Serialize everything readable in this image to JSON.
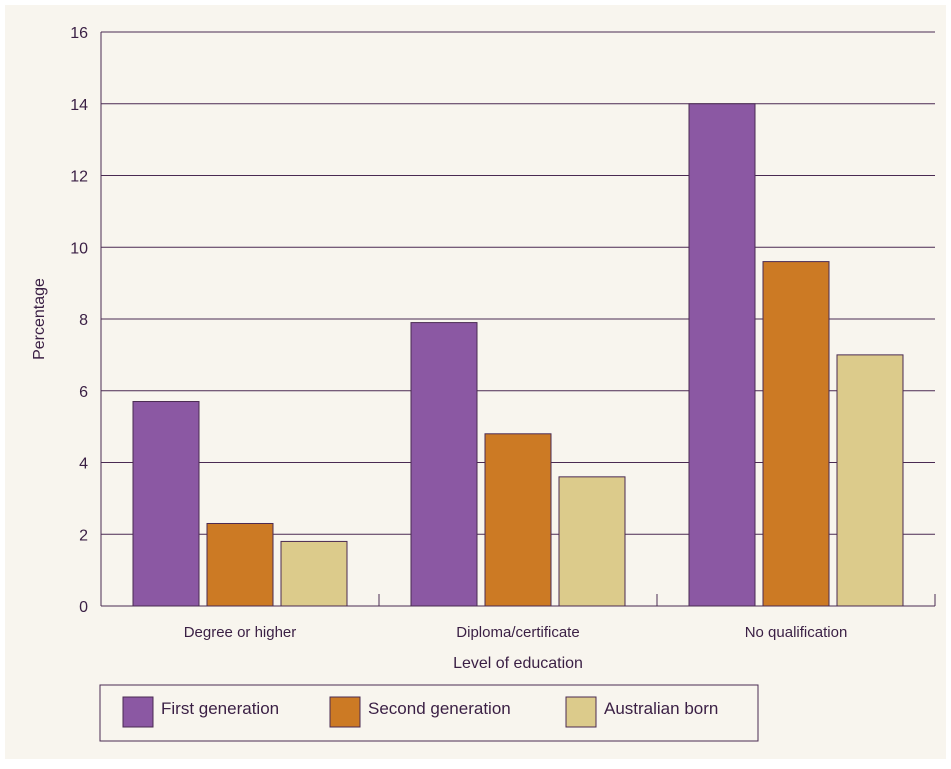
{
  "colors": {
    "background": "#f8f5ee",
    "axis": "#4a2a52",
    "grid": "#4a2a52",
    "text": "#3a1f44",
    "first_generation": "#8b58a3",
    "second_generation": "#cc7a24",
    "australian_born": "#dccb8b"
  },
  "chart_data": {
    "type": "bar",
    "title": "",
    "xlabel": "Level of education",
    "ylabel": "Percentage",
    "ylim": [
      0,
      16
    ],
    "yticks": [
      0,
      2,
      4,
      6,
      8,
      10,
      12,
      14,
      16
    ],
    "grid": true,
    "legend_position": "bottom-left",
    "categories": [
      "Degree or higher",
      "Diploma/certificate",
      "No qualification"
    ],
    "series": [
      {
        "name": "First generation",
        "color": "#8b58a3",
        "values": [
          5.7,
          7.9,
          14.0
        ]
      },
      {
        "name": "Second generation",
        "color": "#cc7a24",
        "values": [
          2.3,
          4.8,
          9.6
        ]
      },
      {
        "name": "Australian born",
        "color": "#dccb8b",
        "values": [
          1.8,
          3.6,
          7.0
        ]
      }
    ]
  }
}
